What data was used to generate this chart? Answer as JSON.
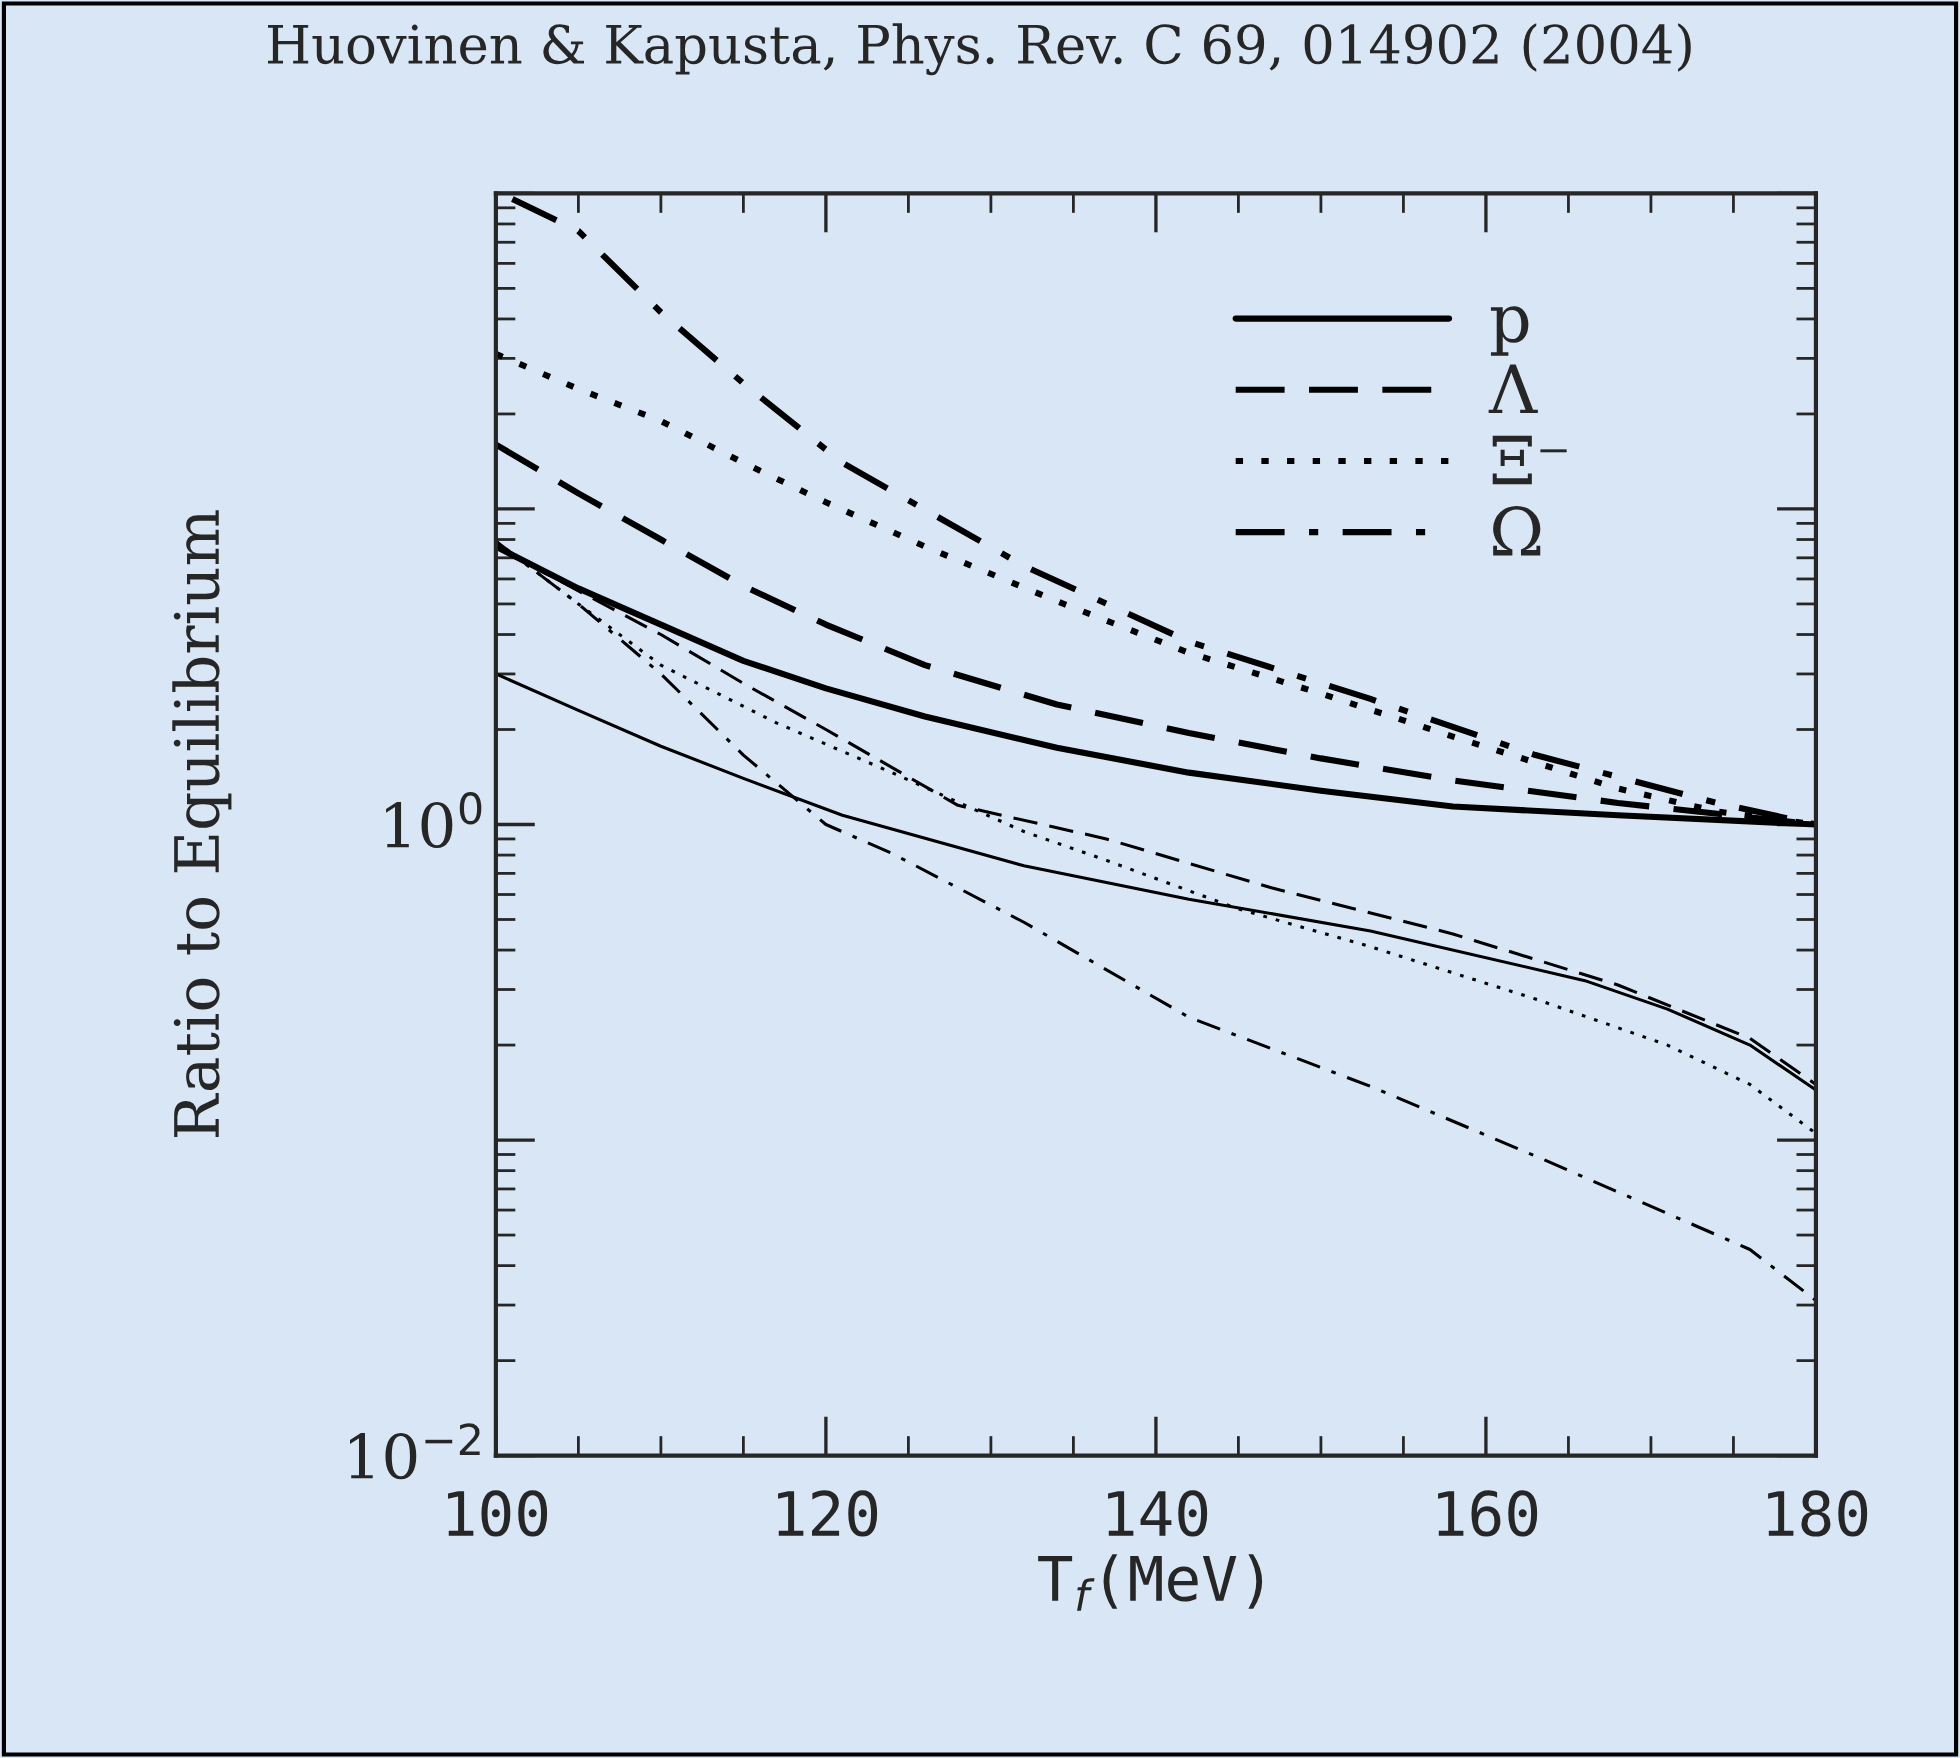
{
  "chart_data": {
    "type": "line",
    "title": "Huovinen & Kapusta, Phys. Rev. C 69, 014902 (2004)",
    "xlabel": "T$_{f}$(MeV)",
    "ylabel": "Ratio to Equilibrium",
    "log": "y",
    "xlim": [
      100,
      180
    ],
    "xticks": [
      100,
      120,
      140,
      160,
      180
    ],
    "ylim": [
      0.01,
      100
    ],
    "yticks": [
      {
        "value": 0.01,
        "label": "10$^{−2}$"
      },
      {
        "value": 1,
        "label": "10$^{0}$"
      }
    ],
    "grid": false,
    "legend": "top right",
    "marker": "none",
    "series": [
      {
        "name": "p",
        "color": "#000000",
        "line_style": "solid",
        "x": [
          100,
          105,
          110,
          115,
          120,
          126,
          134,
          142,
          150,
          158,
          168,
          180
        ],
        "values": [
          7.6,
          5.6,
          4.3,
          3.3,
          2.7,
          2.2,
          1.75,
          1.46,
          1.28,
          1.14,
          1.07,
          1.0
        ]
      },
      {
        "name": "Λ",
        "color": "#000000",
        "line_style": "dashed",
        "x": [
          100,
          105,
          110,
          115,
          120,
          126,
          134,
          142,
          150,
          158,
          168,
          180
        ],
        "values": [
          16,
          11.2,
          8.0,
          5.7,
          4.3,
          3.2,
          2.4,
          1.95,
          1.62,
          1.38,
          1.17,
          1.0
        ]
      },
      {
        "name": "Ξ⁻",
        "color": "#000000",
        "line_style": "dotted",
        "x": [
          100,
          105,
          110,
          115,
          120,
          126,
          134,
          142,
          150,
          158,
          168,
          174,
          180
        ],
        "values": [
          31,
          24,
          19,
          14,
          10.5,
          7.6,
          5.1,
          3.5,
          2.6,
          1.9,
          1.3,
          1.1,
          1.0
        ]
      },
      {
        "name": "Ω",
        "color": "#000000",
        "line_style": "dashdot",
        "x": [
          101,
          105,
          110,
          115,
          121,
          132,
          142,
          153,
          163,
          174,
          180
        ],
        "values": [
          96,
          76,
          42,
          25,
          14,
          6.6,
          3.8,
          2.5,
          1.66,
          1.17,
          1.0
        ]
      },
      {
        "color": "#000000",
        "line_style": "solid",
        "x": [
          100,
          105,
          110,
          115,
          121,
          132,
          142,
          153,
          166,
          171,
          176,
          180
        ],
        "values": [
          3.0,
          2.3,
          1.77,
          1.4,
          1.07,
          0.74,
          0.58,
          0.46,
          0.32,
          0.26,
          0.2,
          0.144
        ]
      },
      {
        "color": "#000000",
        "line_style": "dashed",
        "x": [
          100,
          105,
          110,
          115,
          120,
          128,
          137,
          147,
          158,
          168,
          176,
          180
        ],
        "values": [
          7.6,
          5.5,
          4.0,
          2.8,
          2.0,
          1.15,
          0.9,
          0.63,
          0.45,
          0.31,
          0.21,
          0.15
        ]
      },
      {
        "color": "#000000",
        "line_style": "dotted",
        "x": [
          100,
          105,
          110,
          117,
          124,
          132,
          137,
          145,
          153,
          163,
          171,
          176,
          180
        ],
        "values": [
          7.9,
          5.0,
          3.2,
          2.1,
          1.46,
          0.95,
          0.77,
          0.54,
          0.41,
          0.28,
          0.2,
          0.15,
          0.105
        ]
      },
      {
        "color": "#000000",
        "line_style": "dashdot",
        "x": [
          100,
          105,
          110,
          115,
          120,
          124,
          132,
          142,
          153,
          163,
          174,
          176,
          180
        ],
        "values": [
          7.9,
          5.0,
          3.0,
          1.66,
          1.0,
          0.81,
          0.49,
          0.245,
          0.148,
          0.089,
          0.05,
          0.045,
          0.031
        ]
      }
    ]
  }
}
